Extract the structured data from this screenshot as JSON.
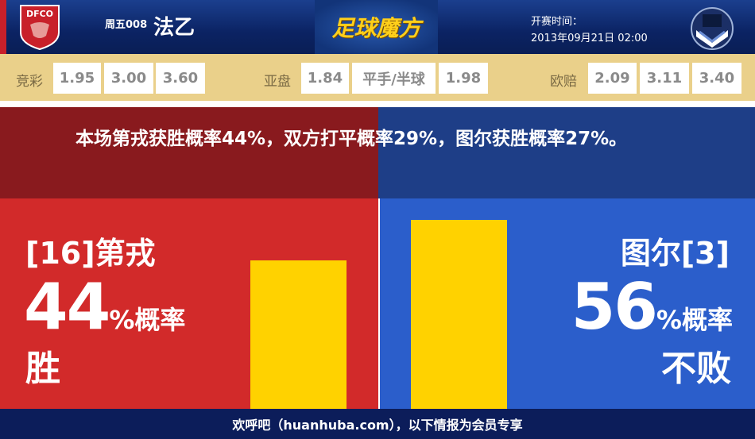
{
  "header": {
    "home_logo_text": "DFCO",
    "match_no": "周五008",
    "league": "法乙",
    "brand": "足球魔方",
    "kickoff_label": "开赛时间：",
    "kickoff_time": "2013年09月21日 02:00"
  },
  "odds": {
    "jingcai": {
      "label": "竞彩",
      "values": [
        "1.95",
        "3.00",
        "3.60"
      ]
    },
    "asian": {
      "label": "亚盘",
      "values": [
        "1.84",
        "平手/半球",
        "1.98"
      ]
    },
    "euro": {
      "label": "欧赔",
      "values": [
        "2.09",
        "3.11",
        "3.40"
      ]
    }
  },
  "summary": "本场第戎获胜概率44%，双方打平概率29%，图尔获胜概率27%。",
  "home": {
    "team": "[16]第戎",
    "percent": "44",
    "suffix": "%概率",
    "result": "胜",
    "value": 44,
    "color": "#d22a2a"
  },
  "away": {
    "team": "图尔[3]",
    "percent": "56",
    "suffix": "%概率",
    "result": "不败",
    "value": 56,
    "color": "#2b5ecb"
  },
  "bar_color": "#ffd200",
  "footer": "欢呼吧（huanhuba.com），以下情报为会员专享"
}
